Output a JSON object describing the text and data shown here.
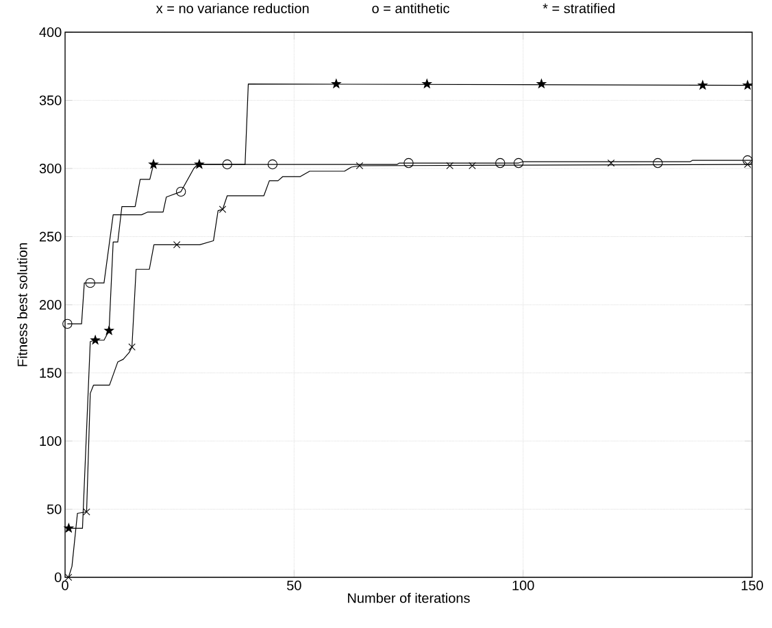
{
  "chart_data": {
    "type": "line",
    "xlabel": "Number of iterations",
    "ylabel": "Fitness best solution",
    "annotations": [
      "x = no variance reduction",
      "o = antithetic",
      "* = stratified"
    ],
    "xlim": [
      0,
      150
    ],
    "ylim": [
      0,
      400
    ],
    "xticks": [
      0,
      50,
      100,
      150
    ],
    "yticks": [
      0,
      50,
      100,
      150,
      200,
      250,
      300,
      350,
      400
    ],
    "grid": true,
    "series": [
      {
        "color": "#000000",
        "x": [
          0.75,
          1.5,
          2.7,
          4.7,
          5.5,
          6.2,
          9.7,
          11.5,
          12.7,
          14,
          14.6,
          15.5,
          18.4,
          19.4,
          24.4,
          29.4,
          32.4,
          33.4,
          34.4,
          35.4,
          43.4,
          44.6,
          46.5,
          47.5,
          51.3,
          53.4,
          61,
          62.5,
          64.3,
          150
        ],
        "values": [
          0,
          8,
          47,
          48,
          135,
          141,
          141,
          158,
          160,
          165,
          169,
          226,
          226,
          244,
          244,
          244,
          247,
          269,
          270,
          280,
          280,
          291,
          291,
          294,
          294,
          298,
          298,
          301,
          302,
          303
        ]
      },
      {
        "type": "scatter",
        "color": "#000000",
        "marker": "cross",
        "x": [
          0.75,
          4.7,
          14.6,
          24.4,
          34.4,
          64.3,
          84,
          88.9,
          119.2,
          149
        ],
        "values": [
          0,
          48,
          169,
          244,
          270,
          302,
          302,
          302,
          304,
          303
        ]
      },
      {
        "color": "#000000",
        "x": [
          0.5,
          3.6,
          4.2,
          8.5,
          10.5,
          16.7,
          18,
          21.4,
          22.1,
          25.3,
          28.1,
          29,
          72.5,
          73,
          99,
          100,
          136.5,
          137,
          150
        ],
        "values": [
          186,
          186,
          216,
          216,
          266,
          266,
          268,
          268,
          279,
          283,
          300,
          303,
          303,
          304,
          304,
          305,
          305,
          306,
          306
        ]
      },
      {
        "type": "scatter",
        "color": "#000000",
        "marker": "circle",
        "x": [
          0.5,
          5.5,
          25.3,
          35.4,
          45.3,
          75,
          95,
          99,
          129.4,
          149
        ],
        "values": [
          186,
          216,
          283,
          303,
          303,
          304,
          304,
          304,
          304,
          306
        ]
      },
      {
        "color": "#000000",
        "x": [
          0.8,
          3.8,
          5.5,
          6.6,
          8.5,
          9.6,
          10.5,
          11.5,
          12.4,
          15.3,
          16.4,
          18.5,
          19.3,
          39.3,
          40,
          150
        ],
        "values": [
          36,
          36,
          173,
          174,
          174,
          181,
          246,
          246,
          272,
          272,
          292,
          292,
          303,
          303,
          362,
          361
        ]
      },
      {
        "type": "scatter",
        "color": "#000000",
        "marker": "star",
        "x": [
          0.8,
          6.6,
          9.6,
          19.3,
          29.3,
          59.2,
          79,
          104,
          139.2,
          149
        ],
        "values": [
          36,
          174,
          181,
          303,
          303,
          362,
          362,
          362,
          361,
          361
        ]
      }
    ]
  }
}
